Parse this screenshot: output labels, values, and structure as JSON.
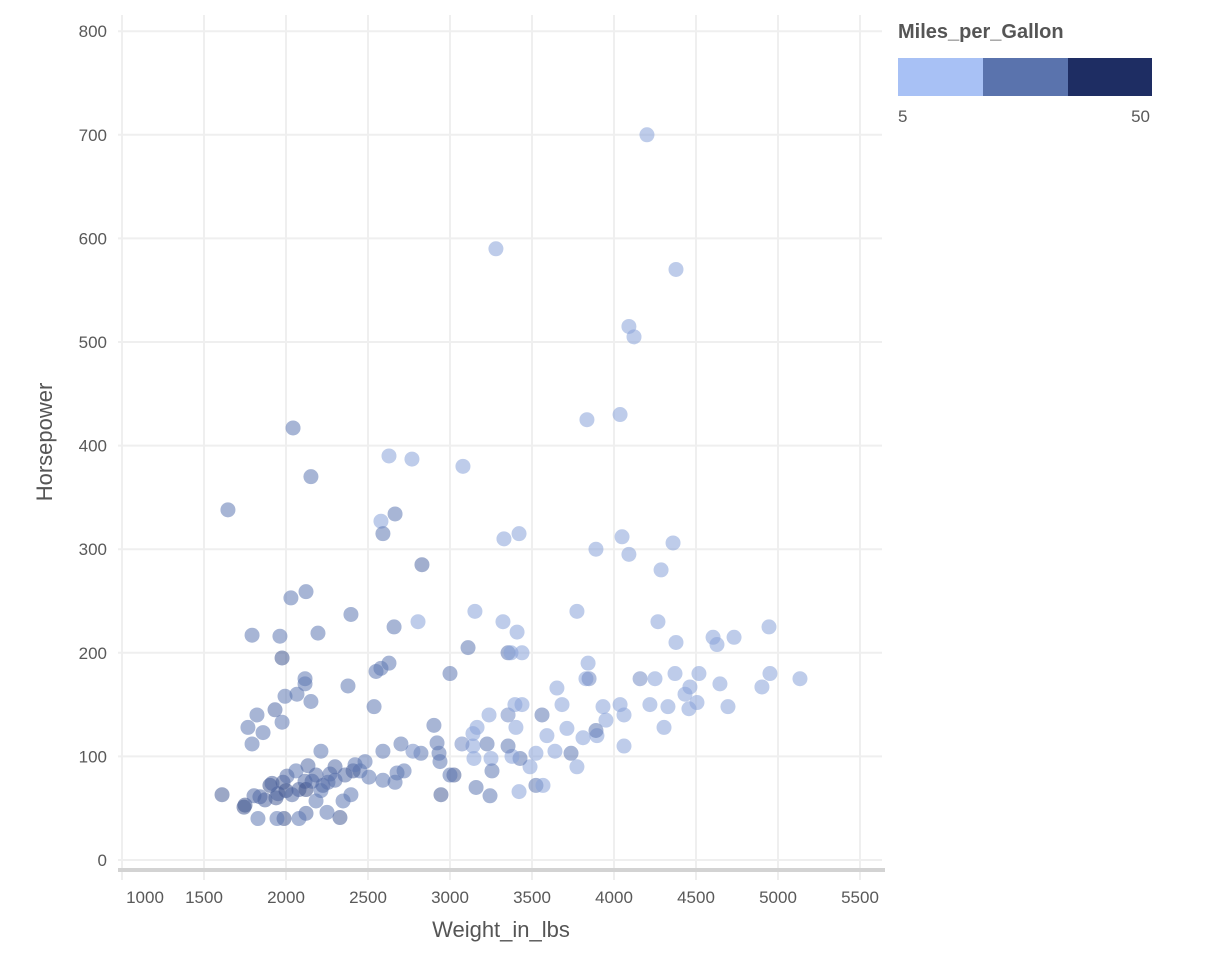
{
  "chart_data": {
    "type": "scatter",
    "xlabel": "Weight_in_lbs",
    "ylabel": "Horsepower",
    "xlim": [
      1000,
      5500
    ],
    "ylim": [
      0,
      800
    ],
    "xticks": [
      "1000",
      "1500",
      "2000",
      "2500",
      "3000",
      "3500",
      "4000",
      "4500",
      "5000",
      "5500"
    ],
    "xtick_values": [
      1000,
      1500,
      2000,
      2500,
      3000,
      3500,
      4000,
      4500,
      5000,
      5500
    ],
    "yticks": [
      "0",
      "100",
      "200",
      "300",
      "400",
      "500",
      "600",
      "700",
      "800"
    ],
    "ytick_values": [
      0,
      100,
      200,
      300,
      400,
      500,
      600,
      700,
      800
    ],
    "grid": true,
    "legend": {
      "title": "Miles_per_Gallon",
      "min_label": "5",
      "max_label": "50",
      "domain": [
        5,
        50
      ],
      "colors": [
        "#a8c1f5",
        "#5a73ad",
        "#1e2d63"
      ],
      "placement": "top-right"
    },
    "point_opacity": 0.55,
    "fields": [
      "Weight_in_lbs",
      "Horsepower",
      "Miles_per_Gallon"
    ],
    "points": [
      [
        4201,
        700,
        14
      ],
      [
        3280,
        590,
        14
      ],
      [
        4378,
        570,
        14
      ],
      [
        4091,
        515,
        14
      ],
      [
        4122,
        505,
        14
      ],
      [
        2043,
        417,
        26
      ],
      [
        3835,
        425,
        14
      ],
      [
        4037,
        430,
        14
      ],
      [
        2628,
        390,
        14
      ],
      [
        2768,
        387,
        14
      ],
      [
        3079,
        380,
        14
      ],
      [
        2152,
        370,
        26
      ],
      [
        1646,
        338,
        26
      ],
      [
        2579,
        327,
        14
      ],
      [
        2665,
        334,
        26
      ],
      [
        2591,
        315,
        26
      ],
      [
        3329,
        310,
        14
      ],
      [
        3421,
        315,
        14
      ],
      [
        2829,
        285,
        30
      ],
      [
        3890,
        300,
        14
      ],
      [
        4049,
        312,
        14
      ],
      [
        4091,
        295,
        14
      ],
      [
        4360,
        306,
        14
      ],
      [
        4287,
        280,
        14
      ],
      [
        2030,
        253,
        26
      ],
      [
        2122,
        259,
        26
      ],
      [
        2396,
        237,
        26
      ],
      [
        1793,
        217,
        26
      ],
      [
        1963,
        216,
        26
      ],
      [
        2195,
        219,
        26
      ],
      [
        2659,
        225,
        26
      ],
      [
        2805,
        230,
        14
      ],
      [
        3152,
        240,
        14
      ],
      [
        3323,
        230,
        14
      ],
      [
        3409,
        220,
        14
      ],
      [
        3774,
        240,
        14
      ],
      [
        4268,
        230,
        14
      ],
      [
        4604,
        215,
        14
      ],
      [
        4732,
        215,
        14
      ],
      [
        4945,
        225,
        14
      ],
      [
        4378,
        210,
        14
      ],
      [
        4628,
        208,
        14
      ],
      [
        1976,
        195,
        36
      ],
      [
        3110,
        205,
        26
      ],
      [
        3354,
        200,
        26
      ],
      [
        3372,
        200,
        14
      ],
      [
        2116,
        175,
        26
      ],
      [
        2116,
        170,
        26
      ],
      [
        2067,
        160,
        26
      ],
      [
        1994,
        158,
        26
      ],
      [
        2152,
        153,
        26
      ],
      [
        1823,
        140,
        26
      ],
      [
        1768,
        128,
        26
      ],
      [
        1860,
        123,
        26
      ],
      [
        1793,
        112,
        26
      ],
      [
        1976,
        133,
        26
      ],
      [
        1933,
        145,
        30
      ],
      [
        2378,
        168,
        26
      ],
      [
        2549,
        182,
        26
      ],
      [
        2628,
        190,
        26
      ],
      [
        2579,
        185,
        26
      ],
      [
        2537,
        148,
        26
      ],
      [
        3000,
        180,
        26
      ],
      [
        2902,
        130,
        26
      ],
      [
        3439,
        200,
        14
      ],
      [
        3652,
        166,
        14
      ],
      [
        3829,
        175,
        14
      ],
      [
        3842,
        190,
        14
      ],
      [
        3848,
        175,
        20
      ],
      [
        4159,
        175,
        20
      ],
      [
        4037,
        150,
        14
      ],
      [
        3933,
        148,
        14
      ],
      [
        4250,
        175,
        14
      ],
      [
        4372,
        180,
        14
      ],
      [
        4463,
        167,
        14
      ],
      [
        4646,
        170,
        14
      ],
      [
        4518,
        180,
        14
      ],
      [
        4695,
        148,
        14
      ],
      [
        4902,
        167,
        14
      ],
      [
        4951,
        180,
        14
      ],
      [
        5134,
        175,
        14
      ],
      [
        4457,
        146,
        14
      ],
      [
        4506,
        152,
        14
      ],
      [
        4219,
        150,
        14
      ],
      [
        4329,
        148,
        14
      ],
      [
        4433,
        160,
        14
      ],
      [
        4305,
        128,
        14
      ],
      [
        4061,
        110,
        14
      ],
      [
        4061,
        140,
        14
      ],
      [
        3896,
        120,
        14
      ],
      [
        3951,
        135,
        14
      ],
      [
        3811,
        118,
        14
      ],
      [
        3713,
        127,
        14
      ],
      [
        3683,
        150,
        14
      ],
      [
        3591,
        120,
        14
      ],
      [
        3561,
        140,
        26
      ],
      [
        3890,
        125,
        26
      ],
      [
        3738,
        103,
        26
      ],
      [
        3774,
        90,
        14
      ],
      [
        3640,
        105,
        14
      ],
      [
        3524,
        103,
        14
      ],
      [
        3488,
        90,
        14
      ],
      [
        3524,
        72,
        26
      ],
      [
        3567,
        72,
        14
      ],
      [
        3421,
        66,
        14
      ],
      [
        3427,
        98,
        26
      ],
      [
        3378,
        100,
        14
      ],
      [
        3354,
        110,
        26
      ],
      [
        3354,
        140,
        20
      ],
      [
        3402,
        128,
        14
      ],
      [
        3396,
        150,
        14
      ],
      [
        3439,
        150,
        14
      ],
      [
        3226,
        112,
        26
      ],
      [
        3238,
        140,
        14
      ],
      [
        3165,
        128,
        14
      ],
      [
        3140,
        122,
        14
      ],
      [
        3146,
        98,
        14
      ],
      [
        3250,
        98,
        14
      ],
      [
        3256,
        86,
        26
      ],
      [
        3244,
        62,
        26
      ],
      [
        3159,
        70,
        26
      ],
      [
        3140,
        110,
        14
      ],
      [
        3073,
        112,
        20
      ],
      [
        3024,
        82,
        34
      ],
      [
        2945,
        63,
        34
      ],
      [
        3000,
        82,
        26
      ],
      [
        2933,
        103,
        26
      ],
      [
        2939,
        95,
        26
      ],
      [
        2921,
        113,
        26
      ],
      [
        2823,
        103,
        26
      ],
      [
        2774,
        105,
        20
      ],
      [
        2720,
        86,
        26
      ],
      [
        2677,
        84,
        26
      ],
      [
        2701,
        112,
        26
      ],
      [
        2665,
        75,
        26
      ],
      [
        2591,
        77,
        26
      ],
      [
        2591,
        105,
        26
      ],
      [
        2506,
        80,
        26
      ],
      [
        2482,
        95,
        26
      ],
      [
        2451,
        86,
        26
      ],
      [
        2409,
        86,
        34
      ],
      [
        2421,
        92,
        26
      ],
      [
        2360,
        82,
        30
      ],
      [
        2396,
        63,
        26
      ],
      [
        2348,
        57,
        26
      ],
      [
        2329,
        41,
        34
      ],
      [
        2250,
        46,
        26
      ],
      [
        2213,
        105,
        26
      ],
      [
        2213,
        67,
        26
      ],
      [
        2183,
        57,
        26
      ],
      [
        2122,
        45,
        30
      ],
      [
        2079,
        40,
        26
      ],
      [
        1988,
        40,
        36
      ],
      [
        1945,
        40,
        26
      ],
      [
        1829,
        40,
        26
      ],
      [
        1750,
        53,
        36
      ],
      [
        1805,
        62,
        30
      ],
      [
        1841,
        61,
        30
      ],
      [
        1872,
        58,
        32
      ],
      [
        1902,
        72,
        36
      ],
      [
        1951,
        64,
        30
      ],
      [
        2000,
        67,
        38
      ],
      [
        2037,
        63,
        30
      ],
      [
        2079,
        68,
        32
      ],
      [
        2116,
        76,
        30
      ],
      [
        2122,
        68,
        38
      ],
      [
        2159,
        76,
        30
      ],
      [
        2183,
        82,
        30
      ],
      [
        2225,
        72,
        30
      ],
      [
        2256,
        75,
        28
      ],
      [
        2268,
        83,
        28
      ],
      [
        2299,
        90,
        30
      ],
      [
        2299,
        77,
        28
      ],
      [
        2061,
        86,
        26
      ],
      [
        1915,
        74,
        32
      ],
      [
        1982,
        75,
        34
      ],
      [
        2006,
        81,
        28
      ],
      [
        1610,
        63,
        34
      ],
      [
        1744,
        51,
        36
      ],
      [
        1939,
        60,
        34
      ],
      [
        2134,
        91,
        30
      ]
    ]
  }
}
